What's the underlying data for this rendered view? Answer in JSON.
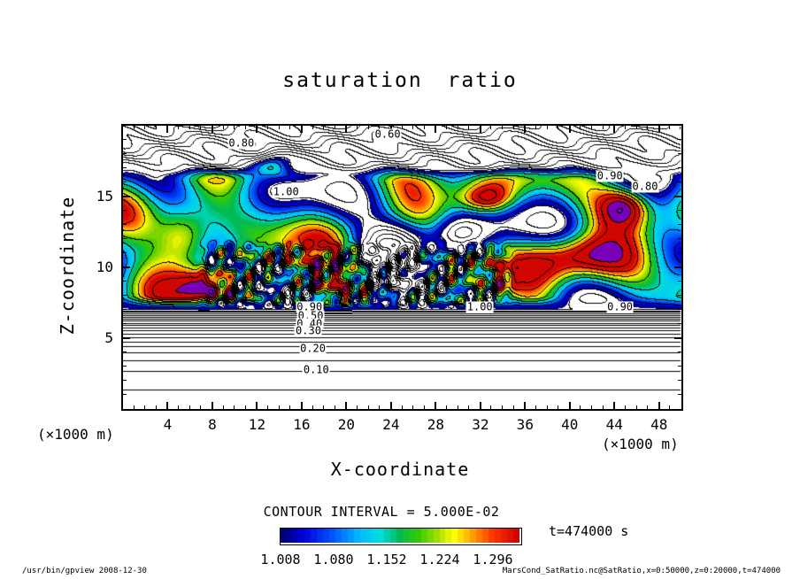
{
  "title": "saturation ratio",
  "axes": {
    "x": {
      "label": "X-coordinate",
      "unit": "(×1000 m)",
      "ticks": [
        4,
        8,
        12,
        16,
        20,
        24,
        28,
        32,
        36,
        40,
        44,
        48
      ],
      "min": 0,
      "max": 50
    },
    "y": {
      "label": "Z-coordinate",
      "unit": "(×1000 m)",
      "ticks": [
        5,
        10,
        15
      ],
      "min": 0,
      "max": 20
    }
  },
  "contour_info": "CONTOUR INTERVAL = 5.000E-02",
  "time_label": "t=474000 s",
  "colorbar": {
    "labels": [
      "1.008",
      "1.080",
      "1.152",
      "1.224",
      "1.296"
    ],
    "min": 1.008,
    "max": 1.332
  },
  "colormap": {
    "under": "#ffffff",
    "over": "#7a00b8",
    "stops": [
      {
        "t": 0.0,
        "c": "#000066"
      },
      {
        "t": 0.1,
        "c": "#0000dd"
      },
      {
        "t": 0.22,
        "c": "#0055ff"
      },
      {
        "t": 0.33,
        "c": "#00bbff"
      },
      {
        "t": 0.42,
        "c": "#00dddd"
      },
      {
        "t": 0.5,
        "c": "#00bb55"
      },
      {
        "t": 0.58,
        "c": "#33cc00"
      },
      {
        "t": 0.66,
        "c": "#aadd00"
      },
      {
        "t": 0.73,
        "c": "#ffff00"
      },
      {
        "t": 0.81,
        "c": "#ff9900"
      },
      {
        "t": 0.89,
        "c": "#ff3300"
      },
      {
        "t": 1.0,
        "c": "#cc0000"
      }
    ]
  },
  "contour_labels": [
    {
      "text": "0.60",
      "fx": 0.474,
      "fy": 0.03
    },
    {
      "text": "0.80",
      "fx": 0.212,
      "fy": 0.062
    },
    {
      "text": "1.00",
      "fx": 0.292,
      "fy": 0.235
    },
    {
      "text": "0.90",
      "fx": 0.872,
      "fy": 0.178
    },
    {
      "text": "0.80",
      "fx": 0.935,
      "fy": 0.215
    },
    {
      "text": "1.00",
      "fx": 0.639,
      "fy": 0.64
    },
    {
      "text": "0.90",
      "fx": 0.89,
      "fy": 0.64
    },
    {
      "text": "0.90",
      "fx": 0.334,
      "fy": 0.642
    },
    {
      "text": "0.50",
      "fx": 0.336,
      "fy": 0.672
    },
    {
      "text": "0.40",
      "fx": 0.334,
      "fy": 0.7
    },
    {
      "text": "0.30",
      "fx": 0.332,
      "fy": 0.726
    },
    {
      "text": "0.20",
      "fx": 0.34,
      "fy": 0.787
    },
    {
      "text": "0.10",
      "fx": 0.346,
      "fy": 0.862
    }
  ],
  "footer": {
    "left": "/usr/bin/gpview  2008-12-30",
    "right": "MarsCond_SatRatio.nc@SatRatio,x=0:50000,z=0:20000,t=474000"
  },
  "chart_data": {
    "type": "contour",
    "title": "saturation ratio",
    "xlabel": "X-coordinate (×1000 m)",
    "ylabel": "Z-coordinate (×1000 m)",
    "x_range_m": [
      0,
      50000
    ],
    "z_range_m": [
      0,
      20000
    ],
    "x_ticks": [
      4,
      8,
      12,
      16,
      20,
      24,
      28,
      32,
      36,
      40,
      44,
      48
    ],
    "z_ticks": [
      5,
      10,
      15
    ],
    "contour_interval": 0.05,
    "contour_interval_label": "5.000E-02",
    "fill_min": 1.008,
    "fill_max": 1.332,
    "colorbar_ticks": [
      1.008,
      1.08,
      1.152,
      1.224,
      1.296
    ],
    "labeled_contours": [
      0.1,
      0.2,
      0.3,
      0.4,
      0.5,
      0.6,
      0.8,
      0.9,
      1.0
    ],
    "time_s": 474000,
    "variable": "SatRatio",
    "description": "Saturation ratio field: near zero at the surface, increasing to ~1 by z≈7 km with tightly packed horizontal contours, a turbulent supersaturated cloud band (S≈1.0–1.4, rainbow filled contours with red maxima and purple over-range patches) between z≈7–17 km, and wavy unfilled contours decreasing to ~0.6 near z=20 km."
  }
}
